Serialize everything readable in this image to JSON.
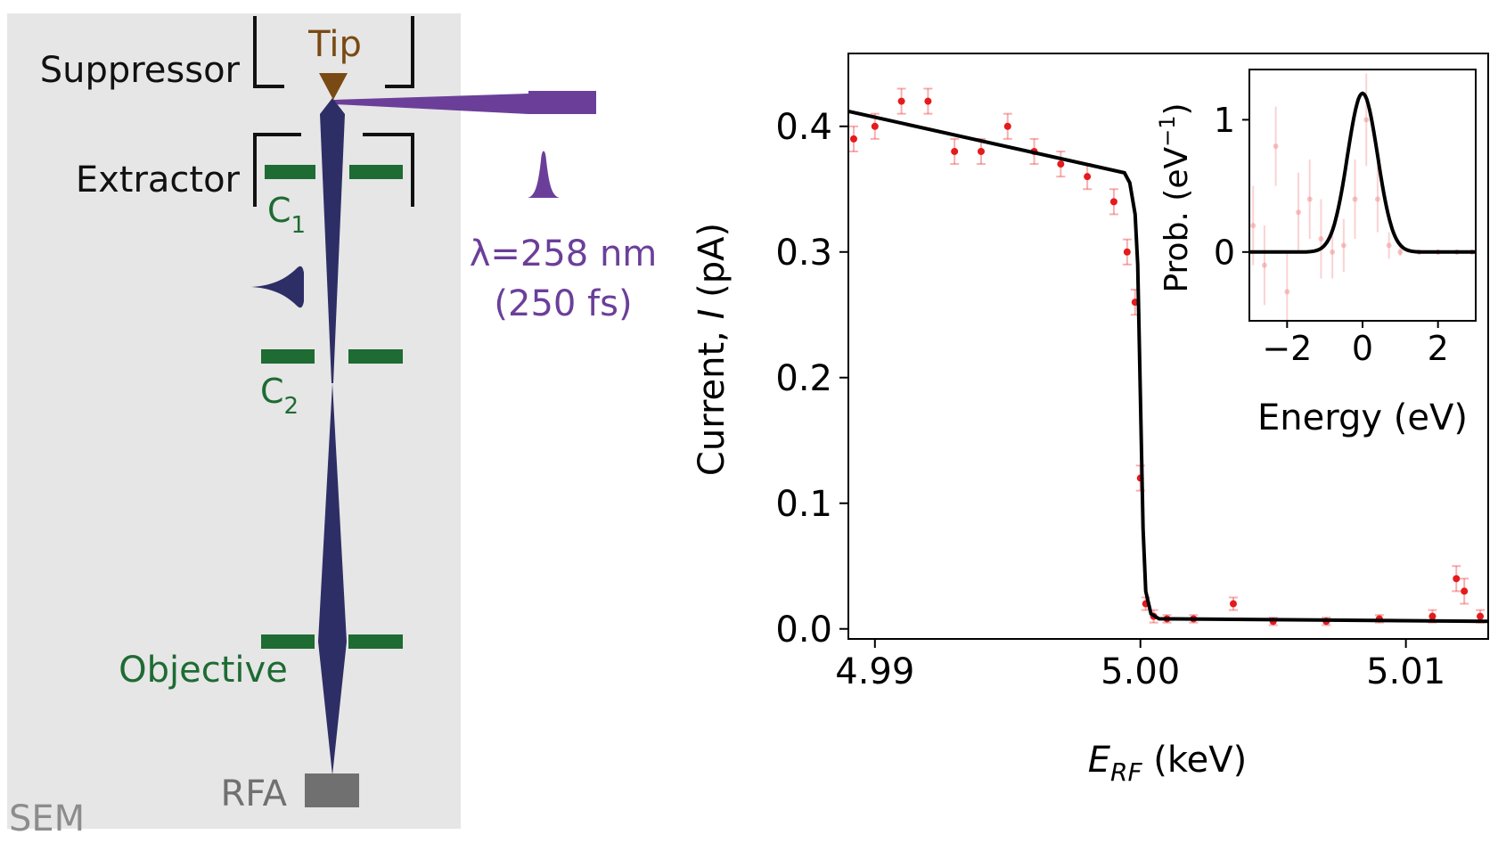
{
  "diagram": {
    "labels": {
      "tip": "Tip",
      "suppressor": "Suppressor",
      "extractor": "Extractor",
      "c1": "C",
      "c1_sub": "1",
      "c2": "C",
      "c2_sub": "2",
      "wavelength": "λ=258 nm",
      "pulse": "(250 fs)",
      "objective": "Objective",
      "rfa": "RFA",
      "sem": "SEM"
    },
    "colors": {
      "panel": "#e6e6e6",
      "beam": "#2e2e66",
      "laser": "#6b3f99",
      "lens": "#1e6b33",
      "tip": "#7a4a14",
      "electrode": "#111111",
      "rfa": "#707070",
      "sem_text": "#8c8c8c"
    }
  },
  "chart_data": [
    {
      "type": "scatter",
      "title": "",
      "xlabel_main": "E",
      "xlabel_sub": "RF",
      "xlabel_unit": " (keV)",
      "ylabel_prefix": "Current, ",
      "ylabel_symbol": "I",
      "ylabel_unit": " (pA)",
      "xlim": [
        4.989,
        5.0131
      ],
      "ylim": [
        -0.008,
        0.458
      ],
      "xticks": [
        4.99,
        5.0,
        5.01
      ],
      "xtick_labels": [
        "4.99",
        "5.00",
        "5.01"
      ],
      "yticks": [
        0.0,
        0.1,
        0.2,
        0.3,
        0.4
      ],
      "ytick_labels": [
        "0.0",
        "0.1",
        "0.2",
        "0.3",
        "0.4"
      ],
      "grid": false,
      "series": [
        {
          "kind": "points_with_errorbars",
          "color": "#e41a1c",
          "x": [
            4.9892,
            4.99,
            4.991,
            4.992,
            4.993,
            4.994,
            4.995,
            4.996,
            4.997,
            4.998,
            4.999,
            4.9995,
            4.9998,
            5.0,
            5.0002,
            5.0005,
            5.001,
            5.002,
            5.0035,
            5.005,
            5.007,
            5.009,
            5.011,
            5.0119,
            5.0122,
            5.0128
          ],
          "y": [
            0.39,
            0.4,
            0.42,
            0.42,
            0.38,
            0.38,
            0.4,
            0.38,
            0.37,
            0.36,
            0.34,
            0.3,
            0.26,
            0.12,
            0.02,
            0.01,
            0.008,
            0.008,
            0.02,
            0.006,
            0.006,
            0.008,
            0.01,
            0.04,
            0.03,
            0.01
          ],
          "yerr": [
            0.01,
            0.01,
            0.01,
            0.01,
            0.01,
            0.01,
            0.01,
            0.01,
            0.01,
            0.01,
            0.01,
            0.01,
            0.01,
            0.01,
            0.005,
            0.005,
            0.003,
            0.003,
            0.005,
            0.003,
            0.003,
            0.003,
            0.005,
            0.01,
            0.01,
            0.005
          ]
        },
        {
          "kind": "fit_line",
          "color": "#000000",
          "x": [
            4.989,
            4.9994,
            4.9996,
            4.9998,
            4.9999,
            5.0,
            5.0001,
            5.0002,
            5.0004,
            5.0007,
            5.0131
          ],
          "y": [
            0.412,
            0.363,
            0.355,
            0.33,
            0.29,
            0.185,
            0.08,
            0.03,
            0.012,
            0.008,
            0.006
          ]
        }
      ]
    },
    {
      "type": "line",
      "title": "",
      "xlabel": "Energy (eV)",
      "ylabel_prefix": "Prob. (eV",
      "ylabel_sup": "−1",
      "ylabel_suffix": ")",
      "xlim": [
        -3,
        3
      ],
      "ylim": [
        -0.52,
        1.38
      ],
      "xticks": [
        -2,
        0,
        2
      ],
      "xtick_labels": [
        "−2",
        "0",
        "2"
      ],
      "yticks": [
        0,
        1
      ],
      "ytick_labels": [
        "0",
        "1"
      ],
      "grid": false,
      "series": [
        {
          "kind": "points_with_errorbars",
          "color": "#f08080",
          "x": [
            -2.9,
            -2.6,
            -2.3,
            -2.0,
            -1.7,
            -1.4,
            -1.1,
            -0.8,
            -0.5,
            -0.2,
            0.1,
            0.4,
            0.7,
            1.0,
            1.5,
            2.0,
            2.5,
            2.9
          ],
          "y": [
            0.2,
            -0.1,
            0.8,
            -0.3,
            0.3,
            0.4,
            0.1,
            0.0,
            0.05,
            0.4,
            1.0,
            0.4,
            0.05,
            0.0,
            0.0,
            0.0,
            0.0,
            0.0
          ],
          "yerr": [
            0.3,
            0.3,
            0.3,
            0.3,
            0.3,
            0.3,
            0.3,
            0.2,
            0.2,
            0.3,
            0.35,
            0.25,
            0.1,
            0.03,
            0.02,
            0.02,
            0.02,
            0.02
          ]
        },
        {
          "kind": "gaussian_fit",
          "color": "#000000",
          "amplitude": 1.2,
          "center": 0.0,
          "sigma": 0.4
        }
      ]
    }
  ]
}
